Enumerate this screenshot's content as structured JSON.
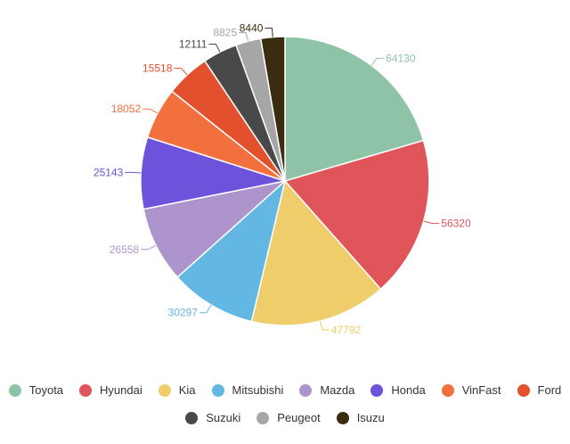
{
  "chart_data": {
    "type": "pie",
    "categories": [
      "Toyota",
      "Hyundai",
      "Kia",
      "Mitsubishi",
      "Mazda",
      "Honda",
      "VinFast",
      "Ford",
      "Suzuki",
      "Peugeot",
      "Isuzu"
    ],
    "values": [
      64130,
      56320,
      47792,
      30297,
      26558,
      25143,
      18052,
      15518,
      12111,
      8825,
      8440
    ],
    "colors": [
      "#8fc3a8",
      "#df5559",
      "#efcd6b",
      "#62b8e3",
      "#ae94cc",
      "#6d52db",
      "#f2703e",
      "#e2502e",
      "#494949",
      "#a6a6a6",
      "#3a2c0f"
    ],
    "legend_position": "bottom",
    "start_angle": "top",
    "direction": "clockwise"
  },
  "legend": {
    "row1": [
      {
        "label": "Toyota",
        "color": "#8fc3a8",
        "icon": "circle-swatch"
      },
      {
        "label": "Hyundai",
        "color": "#df5559",
        "icon": "circle-swatch"
      },
      {
        "label": "Kia",
        "color": "#efcd6b",
        "icon": "circle-swatch"
      },
      {
        "label": "Mitsubishi",
        "color": "#62b8e3",
        "icon": "circle-swatch"
      },
      {
        "label": "Mazda",
        "color": "#ae94cc",
        "icon": "circle-swatch"
      },
      {
        "label": "Honda",
        "color": "#6d52db",
        "icon": "circle-swatch"
      },
      {
        "label": "VinFast",
        "color": "#f2703e",
        "icon": "circle-swatch"
      },
      {
        "label": "Ford",
        "color": "#e2502e",
        "icon": "circle-swatch"
      }
    ],
    "row2": [
      {
        "label": "Suzuki",
        "color": "#494949",
        "icon": "circle-swatch"
      },
      {
        "label": "Peugeot",
        "color": "#a6a6a6",
        "icon": "circle-swatch"
      },
      {
        "label": "Isuzu",
        "color": "#3a2c0f",
        "icon": "circle-swatch"
      }
    ]
  }
}
